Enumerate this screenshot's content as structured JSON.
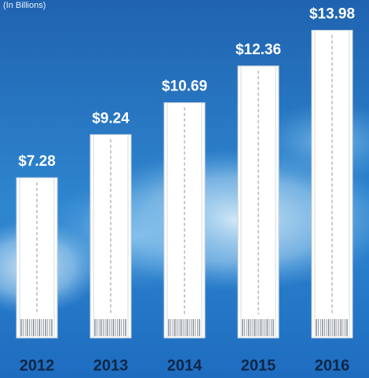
{
  "chart_data": {
    "type": "bar",
    "subtitle": "(In Billions)",
    "categories": [
      "2012",
      "2013",
      "2014",
      "2015",
      "2016"
    ],
    "values": [
      7.28,
      9.24,
      10.69,
      12.36,
      13.98
    ],
    "value_labels": [
      "$7.28",
      "$9.24",
      "$10.69",
      "$12.36",
      "$13.98"
    ],
    "color": "#ffffff"
  }
}
